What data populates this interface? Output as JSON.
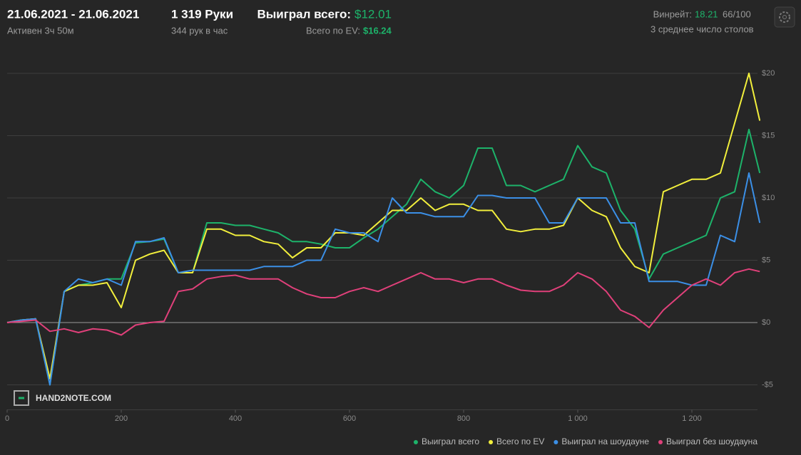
{
  "header": {
    "date_range": "21.06.2021 - 21.06.2021",
    "active": "Активен 3ч 50м",
    "hands": "1 319 Руки",
    "hands_per_hour": "344 рук в час",
    "won_label": "Выиграл всего:",
    "won_value": "$12.01",
    "ev_label": "Всего по EV:",
    "ev_value": "$16.24",
    "winrate_label": "Винрейт:",
    "winrate_value": "18.21",
    "winrate_unit": "66/100",
    "tables": "3 среднее число столов"
  },
  "watermark": "HAND2NOTE.COM",
  "chart_data": {
    "type": "line",
    "x": [
      0,
      25,
      50,
      75,
      100,
      125,
      150,
      175,
      200,
      225,
      250,
      275,
      300,
      325,
      350,
      375,
      400,
      425,
      450,
      475,
      500,
      525,
      550,
      575,
      600,
      625,
      650,
      675,
      700,
      725,
      750,
      775,
      800,
      825,
      850,
      875,
      900,
      925,
      950,
      975,
      1000,
      1025,
      1050,
      1075,
      1100,
      1125,
      1150,
      1175,
      1200,
      1225,
      1250,
      1275,
      1300,
      1319
    ],
    "series": [
      {
        "name": "Выиграл всего",
        "color": "#1db36a",
        "values": [
          0,
          0.2,
          0.3,
          -5,
          2.5,
          3,
          3.2,
          3.5,
          3.5,
          6.4,
          6.5,
          6.7,
          4,
          4,
          8,
          8,
          7.8,
          7.8,
          7.5,
          7.2,
          6.5,
          6.5,
          6.3,
          6,
          6,
          6.8,
          7.5,
          8.5,
          9.5,
          11.5,
          10.5,
          10,
          11,
          14,
          14,
          11,
          11,
          10.5,
          11,
          11.5,
          14.2,
          12.5,
          12,
          9,
          7.5,
          3.5,
          5.5,
          6,
          6.5,
          7,
          10,
          10.5,
          15.5,
          12
        ]
      },
      {
        "name": "Всего по EV",
        "color": "#f2ef3c",
        "values": [
          0,
          0.2,
          0.3,
          -4.5,
          2.5,
          3,
          3,
          3.2,
          1.2,
          5,
          5.5,
          5.8,
          4,
          4,
          7.5,
          7.5,
          7,
          7,
          6.5,
          6.3,
          5.2,
          6,
          6,
          7.2,
          7.2,
          7,
          8,
          9,
          9,
          10,
          9,
          9.5,
          9.5,
          9,
          9,
          7.5,
          7.3,
          7.5,
          7.5,
          7.8,
          10,
          9,
          8.5,
          6,
          4.5,
          4,
          10.5,
          11,
          11.5,
          11.5,
          12,
          16,
          20,
          16.2
        ]
      },
      {
        "name": "Выиграл на шоудауне",
        "color": "#3b8fe6",
        "values": [
          0,
          0.2,
          0.3,
          -5,
          2.5,
          3.5,
          3.2,
          3.5,
          3,
          6.5,
          6.5,
          6.8,
          4,
          4.2,
          4.2,
          4.2,
          4.2,
          4.2,
          4.5,
          4.5,
          4.5,
          5,
          5,
          7.5,
          7.2,
          7.2,
          6.5,
          10,
          8.8,
          8.8,
          8.5,
          8.5,
          8.5,
          10.2,
          10.2,
          10,
          10,
          10,
          8,
          8,
          10,
          10,
          10,
          8,
          8,
          3.3,
          3.3,
          3.3,
          3,
          3,
          7,
          6.5,
          12,
          8
        ]
      },
      {
        "name": "Выиграл без шоудауна",
        "color": "#e0407a",
        "values": [
          0,
          0.1,
          0.2,
          -0.7,
          -0.5,
          -0.8,
          -0.5,
          -0.6,
          -1,
          -0.2,
          0,
          0.1,
          2.5,
          2.7,
          3.5,
          3.7,
          3.8,
          3.5,
          3.5,
          3.5,
          2.8,
          2.3,
          2,
          2,
          2.5,
          2.8,
          2.5,
          3,
          3.5,
          4,
          3.5,
          3.5,
          3.2,
          3.5,
          3.5,
          3,
          2.6,
          2.5,
          2.5,
          3,
          4,
          3.5,
          2.5,
          1,
          0.5,
          -0.4,
          1,
          2,
          3,
          3.5,
          3,
          4,
          4.3,
          4.1
        ]
      }
    ],
    "xlim": [
      0,
      1315
    ],
    "ylim": [
      -7,
      22
    ],
    "xticks": [
      0,
      200,
      400,
      600,
      800,
      {
        "value": 1000,
        "label": "1 000"
      },
      {
        "value": 1200,
        "label": "1 200"
      }
    ],
    "yticks": [
      {
        "value": -5,
        "label": "-$5"
      },
      {
        "value": 0,
        "label": "$0"
      },
      {
        "value": 5,
        "label": "$5"
      },
      {
        "value": 10,
        "label": "$10"
      },
      {
        "value": 15,
        "label": "$15"
      },
      {
        "value": 20,
        "label": "$20"
      }
    ],
    "grid": true,
    "legend": "bottom-right"
  }
}
